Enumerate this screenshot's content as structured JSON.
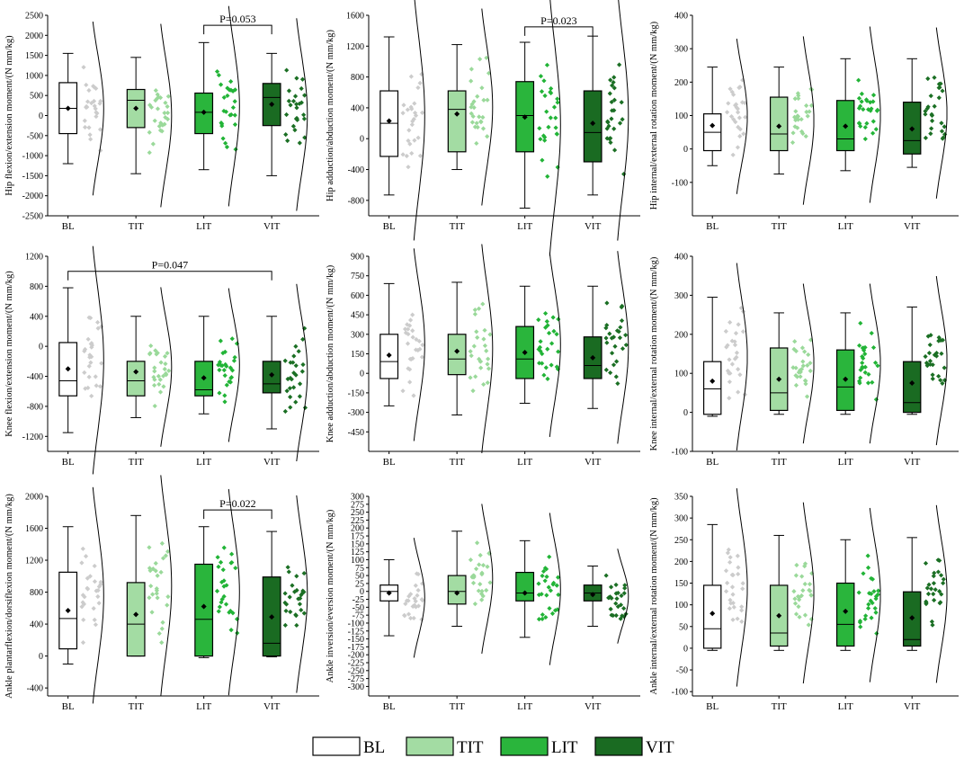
{
  "colors": {
    "BL": "#ffffff",
    "TIT": "#a3dca3",
    "LIT": "#2ab53c",
    "VIT": "#1a6b22",
    "TIT_pt": "#9ad99a",
    "LIT_pt": "#22b437",
    "VIT_pt": "#1b6f24",
    "BL_pt": "#cccccc"
  },
  "legend": [
    "BL",
    "TIT",
    "LIT",
    "VIT"
  ],
  "chart_data": [
    {
      "type": "box",
      "ylabel": "Hip flexion/extension moment/(N mm/kg)",
      "categories": [
        "BL",
        "TIT",
        "LIT",
        "VIT"
      ],
      "ylim": [
        -2500,
        2500
      ],
      "yticks": [
        -2500,
        -2000,
        -1500,
        -1000,
        -500,
        0,
        500,
        1000,
        1500,
        2000,
        2500
      ],
      "boxes": [
        {
          "q1": -450,
          "median": 180,
          "q3": 820,
          "mean": 180,
          "wmin": -1200,
          "wmax": 1550
        },
        {
          "q1": -300,
          "median": 380,
          "q3": 650,
          "mean": 180,
          "wmin": -1450,
          "wmax": 1450
        },
        {
          "q1": -450,
          "median": 80,
          "q3": 560,
          "mean": 80,
          "wmin": -1350,
          "wmax": 1820
        },
        {
          "q1": -250,
          "median": 450,
          "q3": 800,
          "mean": 280,
          "wmin": -1500,
          "wmax": 1550
        }
      ],
      "annotation": {
        "text": "P=0.053",
        "from": 2,
        "to": 3,
        "y": 2250
      }
    },
    {
      "type": "box",
      "ylabel": "Hip adduction/abduction moment/(N mm/kg)",
      "categories": [
        "BL",
        "TIT",
        "LIT",
        "VIT"
      ],
      "ylim": [
        -1000,
        1600
      ],
      "yticks": [
        -800,
        -400,
        0,
        400,
        800,
        1200,
        1600
      ],
      "boxes": [
        {
          "q1": -230,
          "median": 200,
          "q3": 620,
          "mean": 230,
          "wmin": -730,
          "wmax": 1320
        },
        {
          "q1": -170,
          "median": 380,
          "q3": 620,
          "mean": 320,
          "wmin": -400,
          "wmax": 1220
        },
        {
          "q1": -170,
          "median": 300,
          "q3": 740,
          "mean": 280,
          "wmin": -900,
          "wmax": 1250
        },
        {
          "q1": -300,
          "median": 80,
          "q3": 620,
          "mean": 200,
          "wmin": -730,
          "wmax": 1330
        }
      ],
      "annotation": {
        "text": "P=0.023",
        "from": 2,
        "to": 3,
        "y": 1450
      }
    },
    {
      "type": "box",
      "ylabel": "Hip internal/external rotation moment/(N mm/kg)",
      "categories": [
        "BL",
        "TIT",
        "LIT",
        "VIT"
      ],
      "ylim": [
        -200,
        400
      ],
      "yticks": [
        -100,
        0,
        100,
        200,
        300,
        400
      ],
      "boxes": [
        {
          "q1": -5,
          "median": 50,
          "q3": 105,
          "mean": 70,
          "wmin": -50,
          "wmax": 245
        },
        {
          "q1": -5,
          "median": 45,
          "q3": 155,
          "mean": 68,
          "wmin": -75,
          "wmax": 245
        },
        {
          "q1": -5,
          "median": 30,
          "q3": 145,
          "mean": 68,
          "wmin": -65,
          "wmax": 270
        },
        {
          "q1": -15,
          "median": 25,
          "q3": 140,
          "mean": 60,
          "wmin": -55,
          "wmax": 270
        }
      ]
    },
    {
      "type": "box",
      "ylabel": "Knee flexion/extension moment/(N mm/kg)",
      "categories": [
        "BL",
        "TIT",
        "LIT",
        "VIT"
      ],
      "ylim": [
        -1400,
        1200
      ],
      "yticks": [
        -1200,
        -800,
        -400,
        0,
        400,
        800,
        1200
      ],
      "boxes": [
        {
          "q1": -660,
          "median": -460,
          "q3": 50,
          "mean": -300,
          "wmin": -1150,
          "wmax": 780
        },
        {
          "q1": -660,
          "median": -460,
          "q3": -200,
          "mean": -340,
          "wmin": -950,
          "wmax": 400
        },
        {
          "q1": -660,
          "median": -580,
          "q3": -200,
          "mean": -420,
          "wmin": -900,
          "wmax": 400
        },
        {
          "q1": -620,
          "median": -500,
          "q3": -200,
          "mean": -380,
          "wmin": -1100,
          "wmax": 400
        }
      ],
      "annotation": {
        "text": "P=0.047",
        "from": 0,
        "to": 3,
        "y": 1000
      }
    },
    {
      "type": "box",
      "ylabel": "Knee adduction/abduction moment/(N mm/kg)",
      "categories": [
        "BL",
        "TIT",
        "LIT",
        "VIT"
      ],
      "ylim": [
        -600,
        900
      ],
      "yticks": [
        -450,
        -300,
        -150,
        0,
        150,
        300,
        450,
        600,
        750,
        900
      ],
      "boxes": [
        {
          "q1": -40,
          "median": 90,
          "q3": 300,
          "mean": 140,
          "wmin": -250,
          "wmax": 690
        },
        {
          "q1": -10,
          "median": 110,
          "q3": 300,
          "mean": 170,
          "wmin": -320,
          "wmax": 700
        },
        {
          "q1": -40,
          "median": 110,
          "q3": 360,
          "mean": 160,
          "wmin": -230,
          "wmax": 670
        },
        {
          "q1": -40,
          "median": 60,
          "q3": 280,
          "mean": 120,
          "wmin": -270,
          "wmax": 670
        }
      ]
    },
    {
      "type": "box",
      "ylabel": "Knee internal/external rotation moment/(N mm/kg)",
      "categories": [
        "BL",
        "TIT",
        "LIT",
        "VIT"
      ],
      "ylim": [
        -100,
        400
      ],
      "yticks": [
        -100,
        0,
        100,
        200,
        300,
        400
      ],
      "boxes": [
        {
          "q1": -5,
          "median": 60,
          "q3": 130,
          "mean": 80,
          "wmin": -10,
          "wmax": 295
        },
        {
          "q1": 5,
          "median": 50,
          "q3": 165,
          "mean": 85,
          "wmin": -5,
          "wmax": 255
        },
        {
          "q1": 5,
          "median": 65,
          "q3": 160,
          "mean": 85,
          "wmin": -5,
          "wmax": 255
        },
        {
          "q1": 0,
          "median": 25,
          "q3": 130,
          "mean": 75,
          "wmin": -5,
          "wmax": 270
        }
      ]
    },
    {
      "type": "box",
      "ylabel": "Ankle plantarflexion/dorsiflexion moment/(N mm/kg)",
      "categories": [
        "BL",
        "TIT",
        "LIT",
        "VIT"
      ],
      "ylim": [
        -500,
        2000
      ],
      "yticks": [
        -400,
        0,
        400,
        800,
        1200,
        1600,
        2000
      ],
      "boxes": [
        {
          "q1": 90,
          "median": 470,
          "q3": 1050,
          "mean": 570,
          "wmin": -100,
          "wmax": 1620
        },
        {
          "q1": 0,
          "median": 400,
          "q3": 920,
          "mean": 520,
          "wmin": 0,
          "wmax": 1760
        },
        {
          "q1": 0,
          "median": 460,
          "q3": 1150,
          "mean": 620,
          "wmin": -20,
          "wmax": 1620
        },
        {
          "q1": 0,
          "median": 160,
          "q3": 990,
          "mean": 490,
          "wmin": -10,
          "wmax": 1560
        }
      ],
      "annotation": {
        "text": "P=0.022",
        "from": 2,
        "to": 3,
        "y": 1830
      }
    },
    {
      "type": "box",
      "ylabel": "Ankle inversion/eversion moment/(N mm/kg)",
      "categories": [
        "BL",
        "TIT",
        "LIT",
        "VIT"
      ],
      "ylim": [
        -330,
        300
      ],
      "yticks": [
        -300,
        -275,
        -250,
        -225,
        -200,
        -175,
        -150,
        -125,
        -100,
        -75,
        -50,
        -25,
        0,
        25,
        50,
        75,
        100,
        125,
        150,
        175,
        200,
        225,
        250,
        275,
        300
      ],
      "boxes": [
        {
          "q1": -30,
          "median": 0,
          "q3": 20,
          "mean": -5,
          "wmin": -140,
          "wmax": 100
        },
        {
          "q1": -40,
          "median": 0,
          "q3": 50,
          "mean": -5,
          "wmin": -110,
          "wmax": 190
        },
        {
          "q1": -30,
          "median": -5,
          "q3": 60,
          "mean": -5,
          "wmin": -145,
          "wmax": 160
        },
        {
          "q1": -30,
          "median": -5,
          "q3": 20,
          "mean": -10,
          "wmin": -110,
          "wmax": 80
        }
      ]
    },
    {
      "type": "box",
      "ylabel": "Ankle internal/external rotation moment/(N mm/kg)",
      "categories": [
        "BL",
        "TIT",
        "LIT",
        "VIT"
      ],
      "ylim": [
        -110,
        350
      ],
      "yticks": [
        -100,
        -50,
        0,
        50,
        100,
        150,
        200,
        250,
        300,
        350
      ],
      "boxes": [
        {
          "q1": 0,
          "median": 45,
          "q3": 145,
          "mean": 80,
          "wmin": -5,
          "wmax": 285
        },
        {
          "q1": 5,
          "median": 35,
          "q3": 145,
          "mean": 75,
          "wmin": -5,
          "wmax": 260
        },
        {
          "q1": 5,
          "median": 55,
          "q3": 150,
          "mean": 85,
          "wmin": -5,
          "wmax": 250
        },
        {
          "q1": 5,
          "median": 20,
          "q3": 130,
          "mean": 70,
          "wmin": -5,
          "wmax": 255
        }
      ]
    }
  ]
}
